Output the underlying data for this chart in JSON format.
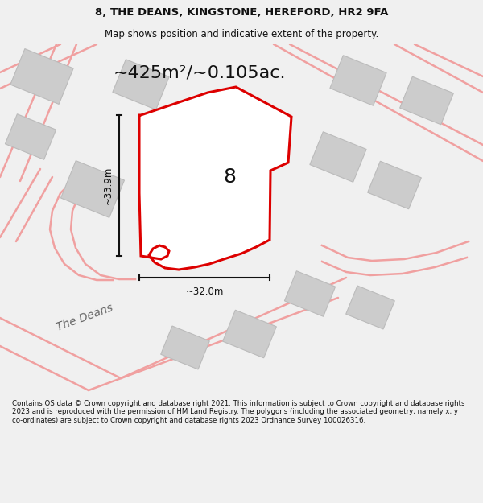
{
  "title": "8, THE DEANS, KINGSTONE, HEREFORD, HR2 9FA",
  "subtitle": "Map shows position and indicative extent of the property.",
  "area_label": "~425m²/~0.105ac.",
  "number_label": "8",
  "dim_vertical": "~33.9m",
  "dim_horizontal": "~32.0m",
  "road_label": "The Deans",
  "footer": "Contains OS data © Crown copyright and database right 2021. This information is subject to Crown copyright and database rights 2023 and is reproduced with the permission of HM Land Registry. The polygons (including the associated geometry, namely x, y co-ordinates) are subject to Crown copyright and database rights 2023 Ordnance Survey 100026316.",
  "bg_color": "#f0f0f0",
  "map_bg": "#f8f8f8",
  "plot_fill": "#ffffff",
  "plot_edge": "#dd0000",
  "road_color": "#f0a0a0",
  "building_fill": "#cccccc",
  "building_edge": "#bbbbbb",
  "dim_color": "#111111",
  "title_color": "#111111",
  "footer_color": "#111111",
  "title_fontsize": 9.5,
  "subtitle_fontsize": 8.5,
  "footer_fontsize": 6.2,
  "area_fontsize": 16,
  "number_fontsize": 18,
  "dim_fontsize": 8.5,
  "road_fontsize": 10
}
